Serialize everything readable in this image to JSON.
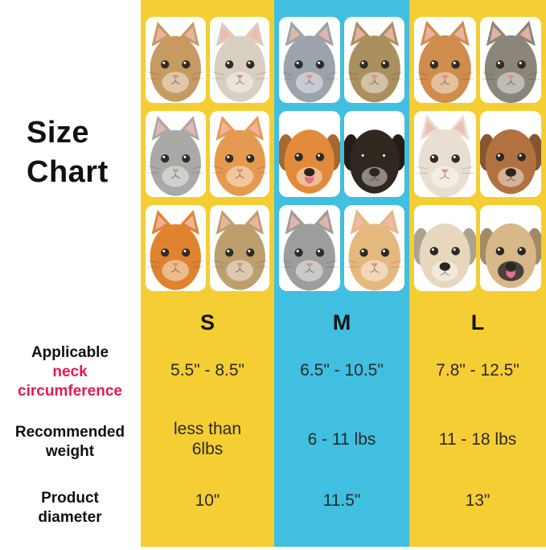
{
  "title": {
    "line1": "Size",
    "line2": "Chart"
  },
  "colors": {
    "yellow": "#F5CE33",
    "blue": "#41BFE0",
    "pink": "#E31A52",
    "text": "#111111"
  },
  "row_labels": {
    "neck": {
      "line1": "Applicable",
      "line2": "neck",
      "line3": "circumference"
    },
    "weight": {
      "line1": "Recommended",
      "line2": "weight"
    },
    "diameter": {
      "line1": "Product",
      "line2": "diameter"
    }
  },
  "columns": [
    {
      "size": "S",
      "accent": "yellow",
      "neck": "5.5\" - 8.5\"",
      "weight": [
        "less than",
        "6lbs"
      ],
      "diameter": "10\"",
      "pets": [
        {
          "name": "fluffy-brown-tabby-kitten",
          "species": "cat",
          "fur": "#c79a62"
        },
        {
          "name": "cream-tabby-kitten",
          "species": "cat",
          "fur": "#d9cfc0"
        },
        {
          "name": "gray-tabby-kitten",
          "species": "cat",
          "fur": "#a9a9a7"
        },
        {
          "name": "orange-tabby-kitten",
          "species": "cat",
          "fur": "#e69a4f"
        },
        {
          "name": "ginger-kitten",
          "species": "cat",
          "fur": "#e0832f"
        },
        {
          "name": "brown-tabby-kitten",
          "species": "cat",
          "fur": "#bd9f6e"
        }
      ]
    },
    {
      "size": "M",
      "accent": "blue",
      "neck": "6.5\" - 10.5\"",
      "weight": [
        "6 - 11 lbs"
      ],
      "diameter": "11.5\"",
      "pets": [
        {
          "name": "gray-british-shorthair-cat",
          "species": "cat",
          "fur": "#9ba3ab"
        },
        {
          "name": "brown-tabby-cat",
          "species": "cat",
          "fur": "#a9905e"
        },
        {
          "name": "pomeranian-dog",
          "species": "dog",
          "fur": "#e18a3c",
          "tongue": true
        },
        {
          "name": "chihuahua-dog",
          "species": "dog",
          "fur": "#30271f"
        },
        {
          "name": "gray-tabby-cat",
          "species": "cat",
          "fur": "#9d9d9b"
        },
        {
          "name": "cream-tabby-cat",
          "species": "cat",
          "fur": "#e5b97e"
        }
      ]
    },
    {
      "size": "L",
      "accent": "yellow",
      "neck": "7.8\" - 12.5\"",
      "weight": [
        "11 - 18 lbs"
      ],
      "diameter": "13\"",
      "pets": [
        {
          "name": "ginger-longhair-cat",
          "species": "cat",
          "fur": "#cf8c4d"
        },
        {
          "name": "maine-coon-cat",
          "species": "cat",
          "fur": "#8b8679"
        },
        {
          "name": "ragdoll-cat",
          "species": "cat",
          "fur": "#e9ded2"
        },
        {
          "name": "brown-poodle-dog",
          "species": "dog",
          "fur": "#b2723f"
        },
        {
          "name": "havanese-dog",
          "species": "dog",
          "fur": "#e7d8bd"
        },
        {
          "name": "pug-dog",
          "species": "dog",
          "fur": "#d8b888",
          "muzzle": "#49403a",
          "tongue": true
        }
      ]
    }
  ],
  "chart_data": {
    "type": "table",
    "title": "Size Chart",
    "columns": [
      "S",
      "M",
      "L"
    ],
    "rows": [
      {
        "label": "Applicable neck circumference",
        "values": [
          "5.5\" - 8.5\"",
          "6.5\" - 10.5\"",
          "7.8\" - 12.5\""
        ]
      },
      {
        "label": "Recommended weight",
        "values": [
          "less than 6lbs",
          "6 - 11 lbs",
          "11 - 18 lbs"
        ]
      },
      {
        "label": "Product diameter",
        "values": [
          "10\"",
          "11.5\"",
          "13\""
        ]
      }
    ]
  }
}
